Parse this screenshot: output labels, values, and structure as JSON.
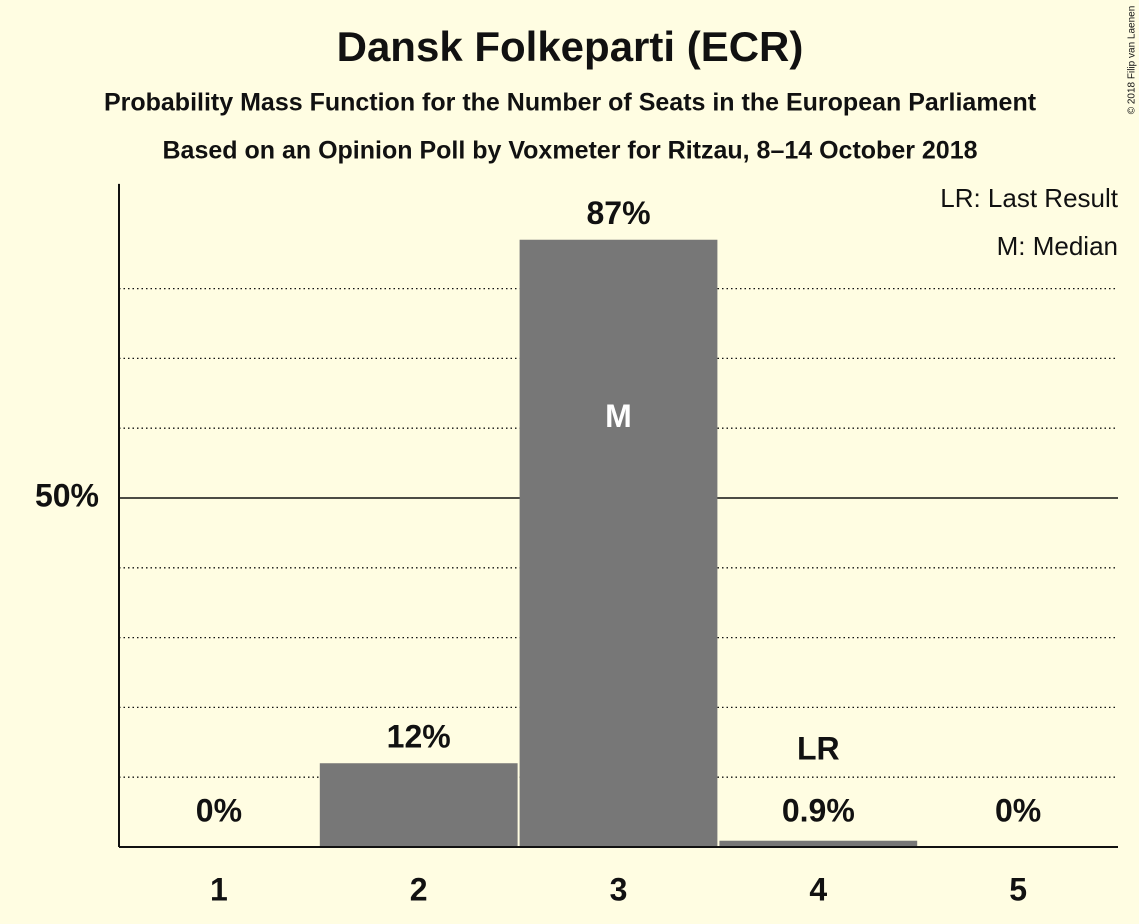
{
  "chart_data": {
    "type": "bar",
    "title": "Dansk Folkeparti (ECR)",
    "subtitle": "Probability Mass Function for the Number of Seats in the European Parliament",
    "subtitle2": "Based on an Opinion Poll by Voxmeter for Ritzau, 8–14 October 2018",
    "categories": [
      "1",
      "2",
      "3",
      "4",
      "5"
    ],
    "values": [
      0,
      12,
      87,
      0.9,
      0
    ],
    "value_labels": [
      "0%",
      "12%",
      "87%",
      "0.9%",
      "0%"
    ],
    "color": "#777777",
    "ylim": [
      0,
      95
    ],
    "yticks": [
      {
        "value": 50,
        "label": "50%"
      }
    ],
    "minor_yticks": [
      10,
      20,
      30,
      40,
      60,
      70,
      80
    ],
    "annotations": [
      {
        "text": "M",
        "category": "3"
      },
      {
        "text": "LR",
        "category": "4"
      }
    ],
    "legend_notes": [
      "LR: Last Result",
      "M: Median"
    ],
    "copyright": "© 2018 Filip van Laenen"
  }
}
